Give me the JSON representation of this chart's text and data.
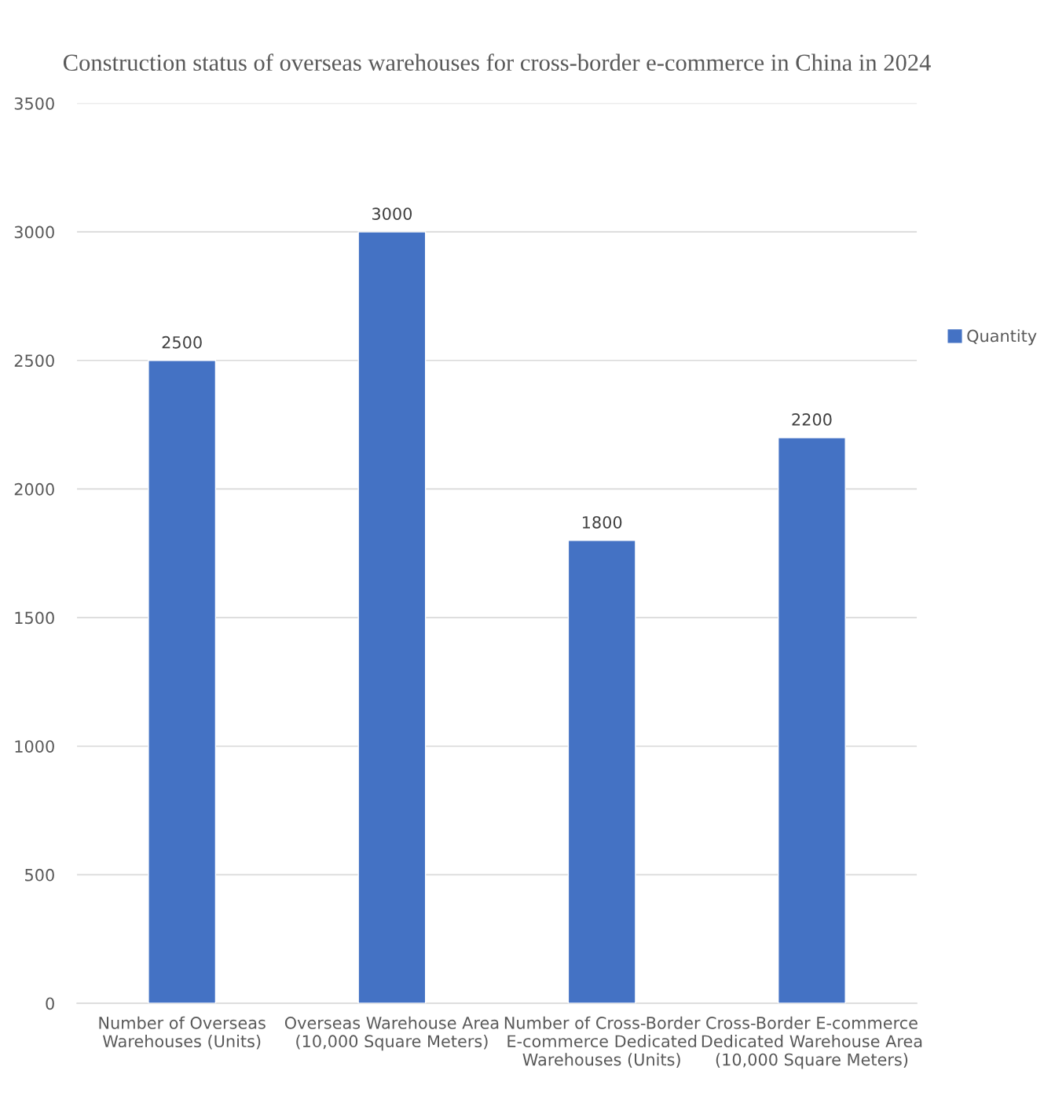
{
  "chart_data": {
    "type": "bar",
    "title": "Construction status of overseas warehouses for cross-border e-commerce in China in 2024",
    "categories": [
      "Number of Overseas Warehouses (Units)",
      "Overseas Warehouse Area (10,000 Square Meters)",
      "Number of Cross-Border E-commerce Dedicated Warehouses (Units)",
      "Cross-Border E-commerce Dedicated Warehouse Area (10,000 Square Meters)"
    ],
    "series": [
      {
        "name": "Quantity",
        "color": "#4472c4",
        "values": [
          2500,
          3000,
          1800,
          2200
        ]
      }
    ],
    "ylim": [
      0,
      3500
    ],
    "yticks": [
      0,
      500,
      1000,
      1500,
      2000,
      2500,
      3000,
      3500
    ],
    "grid": "y",
    "legend": "right",
    "data_labels": true
  }
}
